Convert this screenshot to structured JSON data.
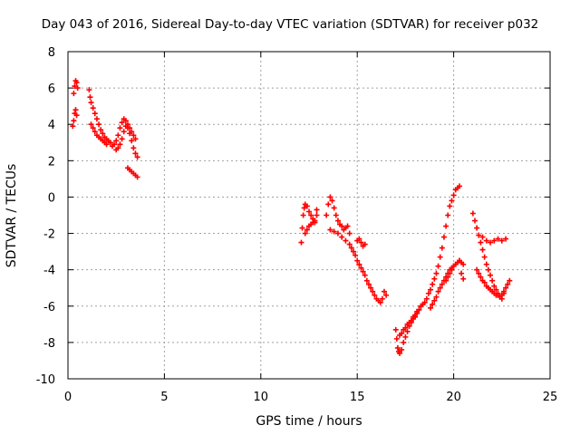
{
  "chart_data": {
    "type": "scatter",
    "title": "Day 043 of 2016, Sidereal Day-to-day VTEC variation (SDTVAR) for receiver p032",
    "xlabel": "GPS time / hours",
    "ylabel": "SDTVAR / TECUs",
    "xlim": [
      0,
      25
    ],
    "ylim": [
      -10,
      8
    ],
    "xticks": [
      0,
      5,
      10,
      15,
      20,
      25
    ],
    "yticks": [
      -10,
      -8,
      -6,
      -4,
      -2,
      0,
      2,
      4,
      6,
      8
    ],
    "grid": true,
    "legend": "none",
    "marker": "+",
    "color": "#ff0000",
    "series": [
      {
        "x": [
          0.25,
          0.3,
          0.35,
          0.4,
          0.45,
          0.3,
          0.35,
          0.4,
          0.45,
          0.5,
          1.1,
          1.15,
          1.2,
          1.3,
          1.4,
          1.5,
          1.6,
          1.7,
          1.8,
          1.9,
          2.0,
          2.1,
          2.2,
          1.2,
          1.3,
          1.4,
          1.5,
          1.6,
          1.7,
          1.8,
          1.9,
          2.0,
          2.3,
          2.4,
          2.5,
          2.6,
          2.7,
          2.8,
          2.9,
          3.0,
          3.1,
          3.2,
          3.3,
          3.4,
          3.5,
          2.5,
          2.6,
          2.7,
          2.8,
          2.9,
          3.0,
          3.1,
          3.2,
          3.3,
          3.4,
          3.5,
          3.6,
          3.1,
          3.2,
          3.3,
          3.4,
          3.5,
          3.6
        ],
        "y": [
          3.9,
          4.2,
          4.6,
          4.8,
          4.5,
          5.7,
          6.1,
          6.4,
          6.3,
          6.0,
          5.9,
          5.5,
          5.2,
          4.9,
          4.6,
          4.3,
          4.0,
          3.7,
          3.5,
          3.3,
          3.2,
          3.1,
          3.0,
          4.0,
          3.8,
          3.6,
          3.4,
          3.3,
          3.2,
          3.1,
          3.0,
          2.9,
          2.8,
          2.9,
          3.1,
          3.4,
          3.8,
          4.1,
          4.3,
          4.2,
          4.0,
          3.8,
          3.6,
          3.4,
          3.2,
          2.6,
          2.7,
          2.9,
          3.2,
          3.6,
          3.9,
          3.8,
          3.5,
          3.1,
          2.7,
          2.4,
          2.2,
          1.6,
          1.5,
          1.4,
          1.3,
          1.2,
          1.1
        ]
      },
      {
        "x": [
          12.1,
          12.15,
          12.2,
          12.25,
          12.3,
          12.4,
          12.5,
          12.6,
          12.7,
          12.8,
          12.9,
          12.3,
          12.4,
          12.5,
          12.6,
          12.7,
          12.8,
          12.9,
          13.4,
          13.5,
          13.6,
          13.7,
          13.8,
          13.9,
          14.0,
          14.1,
          14.2,
          14.3,
          14.4,
          14.5,
          14.6,
          13.6,
          13.8,
          14.0,
          14.2,
          14.4,
          14.6,
          14.7,
          14.8,
          14.9,
          15.0,
          15.1,
          15.2,
          15.3,
          15.4,
          15.5,
          15.6,
          15.7,
          15.8,
          15.9,
          16.0,
          16.1,
          16.2,
          16.3,
          16.4,
          16.5,
          15.0,
          15.1,
          15.2,
          15.3,
          15.4
        ],
        "y": [
          -2.5,
          -1.7,
          -1.0,
          -0.6,
          -0.4,
          -0.5,
          -0.8,
          -1.0,
          -1.2,
          -1.4,
          -1.0,
          -2.0,
          -1.8,
          -1.6,
          -1.5,
          -1.4,
          -1.3,
          -0.7,
          -1.0,
          -0.4,
          0.0,
          -0.2,
          -0.6,
          -1.0,
          -1.3,
          -1.5,
          -1.6,
          -1.8,
          -1.7,
          -1.6,
          -2.0,
          -1.8,
          -1.9,
          -2.0,
          -2.2,
          -2.4,
          -2.6,
          -2.8,
          -3.0,
          -3.2,
          -3.5,
          -3.7,
          -3.9,
          -4.1,
          -4.3,
          -4.6,
          -4.8,
          -5.0,
          -5.2,
          -5.4,
          -5.6,
          -5.7,
          -5.8,
          -5.6,
          -5.2,
          -5.4,
          -2.4,
          -2.3,
          -2.5,
          -2.7,
          -2.6
        ]
      },
      {
        "x": [
          17.0,
          17.05,
          17.1,
          17.15,
          17.2,
          17.3,
          17.4,
          17.5,
          17.6,
          17.7,
          17.8,
          17.9,
          18.0,
          18.1,
          18.2,
          18.3,
          18.4,
          18.5,
          17.2,
          17.3,
          17.4,
          17.5,
          17.6,
          17.7,
          17.8,
          17.9,
          18.0,
          18.1,
          18.2,
          18.3,
          18.4,
          18.6,
          18.7,
          18.8,
          18.9,
          19.0,
          19.1,
          19.2,
          19.3,
          19.4,
          19.5,
          19.6,
          19.7,
          19.8,
          19.9,
          20.0,
          20.1,
          20.2,
          20.3,
          18.8,
          18.9,
          19.0,
          19.1,
          19.2,
          19.3,
          19.4,
          19.5,
          19.6,
          19.7,
          19.8,
          19.9,
          20.0,
          20.1,
          20.2,
          20.3,
          20.4,
          20.5,
          19.6,
          19.7,
          19.8,
          19.9,
          20.0,
          20.3,
          20.4,
          20.5
        ],
        "y": [
          -7.3,
          -7.8,
          -8.3,
          -8.5,
          -8.6,
          -8.4,
          -8.0,
          -7.7,
          -7.4,
          -7.1,
          -6.9,
          -6.7,
          -6.6,
          -6.4,
          -6.2,
          -6.0,
          -5.9,
          -5.8,
          -7.6,
          -7.5,
          -7.3,
          -7.2,
          -7.0,
          -6.9,
          -6.8,
          -6.6,
          -6.5,
          -6.3,
          -6.2,
          -6.0,
          -5.9,
          -5.6,
          -5.3,
          -5.1,
          -4.8,
          -4.5,
          -4.2,
          -3.8,
          -3.3,
          -2.8,
          -2.2,
          -1.6,
          -1.0,
          -0.5,
          -0.2,
          0.1,
          0.4,
          0.5,
          0.6,
          -6.1,
          -5.9,
          -5.7,
          -5.5,
          -5.2,
          -5.0,
          -4.8,
          -4.6,
          -4.4,
          -4.2,
          -4.0,
          -3.9,
          -3.8,
          -3.7,
          -3.6,
          -3.5,
          -4.2,
          -4.5,
          -4.6,
          -4.4,
          -4.2,
          -4.0,
          -3.8,
          -3.5,
          -3.6,
          -3.7
        ]
      },
      {
        "x": [
          21.0,
          21.1,
          21.2,
          21.3,
          21.4,
          21.5,
          21.6,
          21.7,
          21.8,
          21.9,
          22.0,
          22.1,
          22.2,
          22.3,
          22.4,
          22.5,
          22.6,
          22.7,
          22.8,
          22.9,
          21.2,
          21.3,
          21.4,
          21.5,
          21.6,
          21.7,
          21.8,
          21.9,
          22.0,
          22.1,
          22.2,
          22.3,
          22.4,
          22.5,
          22.6,
          21.5,
          21.7,
          21.9,
          22.1,
          22.3,
          22.5,
          22.7
        ],
        "y": [
          -0.9,
          -1.3,
          -1.7,
          -2.1,
          -2.5,
          -2.9,
          -3.3,
          -3.7,
          -4.0,
          -4.3,
          -4.6,
          -4.9,
          -5.1,
          -5.3,
          -5.5,
          -5.4,
          -5.2,
          -5.0,
          -4.8,
          -4.6,
          -4.0,
          -4.2,
          -4.4,
          -4.6,
          -4.7,
          -4.9,
          -5.0,
          -5.1,
          -5.2,
          -5.3,
          -5.4,
          -5.4,
          -5.5,
          -5.6,
          -5.3,
          -2.2,
          -2.4,
          -2.5,
          -2.4,
          -2.3,
          -2.4,
          -2.3
        ]
      }
    ]
  }
}
